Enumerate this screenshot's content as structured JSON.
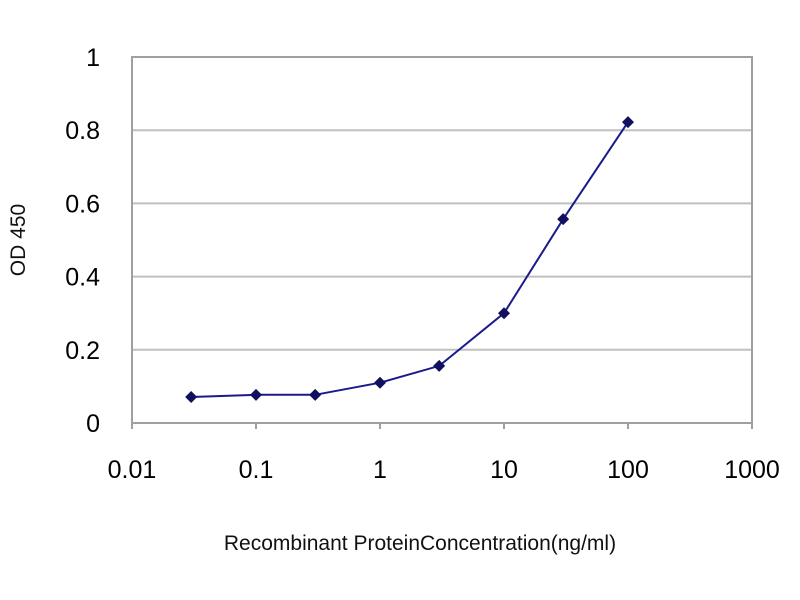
{
  "chart_data": {
    "type": "line",
    "title": "",
    "xlabel": "Recombinant ProteinConcentration(ng/ml)",
    "ylabel": "OD 450",
    "xscale": "log",
    "xlim": [
      0.01,
      1000
    ],
    "ylim": [
      0,
      1
    ],
    "xticks": [
      "0.01",
      "0.1",
      "1",
      "10",
      "100",
      "1000"
    ],
    "yticks": [
      "0",
      "0.2",
      "0.4",
      "0.6",
      "0.8",
      "1"
    ],
    "grid": "horizontal",
    "colors": {
      "series": "#1a1a8c",
      "grid": "#c0c0c0",
      "frame": "#a0a0a0"
    },
    "series": [
      {
        "x": [
          0.03,
          0.1,
          0.3,
          1,
          3,
          10,
          30,
          100
        ],
        "y": [
          0.071,
          0.077,
          0.077,
          0.11,
          0.156,
          0.3,
          0.557,
          0.822
        ]
      }
    ]
  }
}
